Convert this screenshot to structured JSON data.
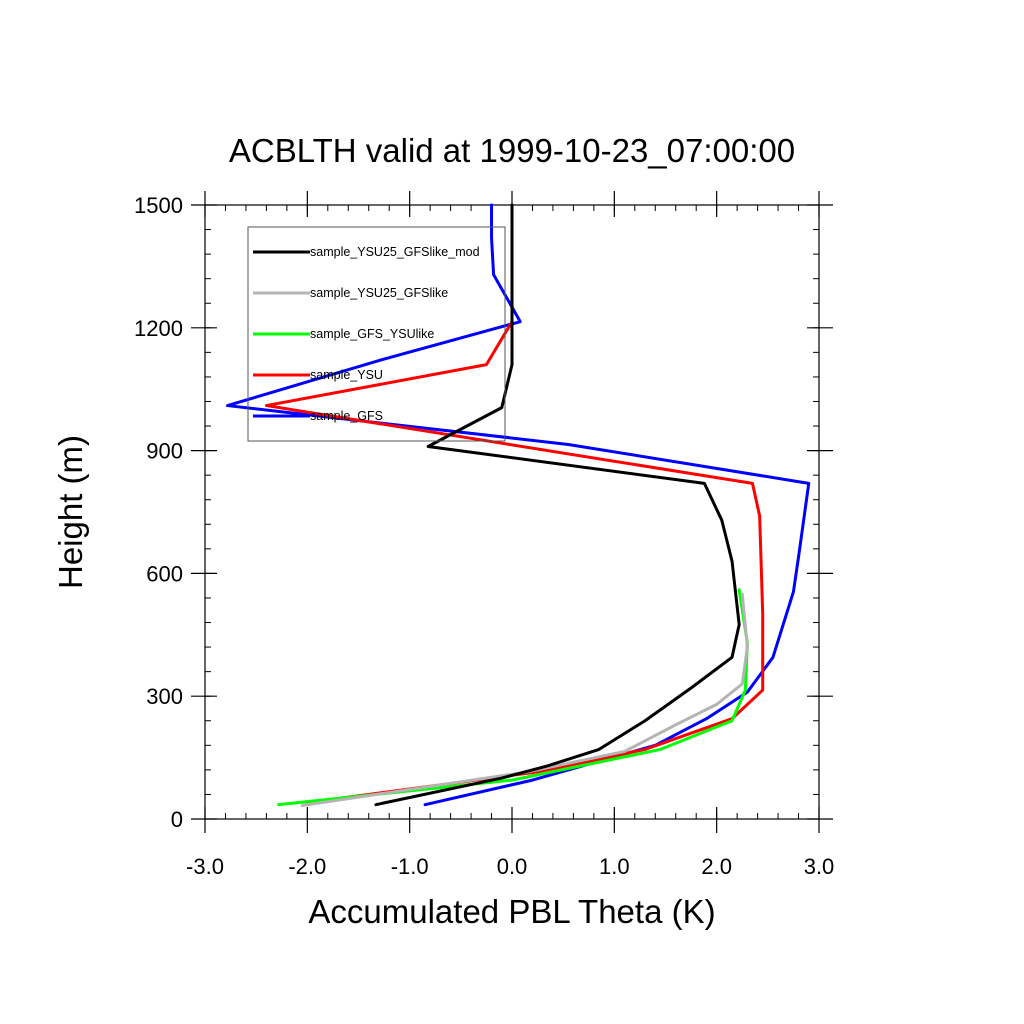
{
  "chart_data": {
    "type": "line",
    "title": "ACBLTH valid at 1999-10-23_07:00:00",
    "xlabel": "Accumulated PBL Theta (K)",
    "ylabel": "Height (m)",
    "xlim": [
      -3.0,
      3.0
    ],
    "ylim": [
      0,
      1500
    ],
    "xticks": [
      -3.0,
      -2.0,
      -1.0,
      0.0,
      1.0,
      2.0,
      3.0
    ],
    "xtick_labels": [
      "-3.0",
      "-2.0",
      "-1.0",
      "0.0",
      "1.0",
      "2.0",
      "3.0"
    ],
    "yticks": [
      0,
      300,
      600,
      900,
      1200,
      1500
    ],
    "ytick_labels": [
      "0",
      "300",
      "600",
      "900",
      "1200",
      "1500"
    ],
    "grid": false,
    "legend_position": "top-left",
    "series": [
      {
        "name": "sample_YSU25_GFSlike_mod",
        "color": "#000000",
        "points": [
          [
            -1.33,
            35
          ],
          [
            -0.1,
            100
          ],
          [
            0.35,
            130
          ],
          [
            0.85,
            170
          ],
          [
            1.3,
            240
          ],
          [
            1.75,
            320
          ],
          [
            2.15,
            395
          ],
          [
            2.22,
            475
          ],
          [
            2.15,
            630
          ],
          [
            2.05,
            730
          ],
          [
            1.88,
            820
          ],
          [
            -0.82,
            910
          ],
          [
            -0.1,
            1005
          ],
          [
            0.0,
            1110
          ],
          [
            0.0,
            1500
          ]
        ]
      },
      {
        "name": "sample_YSU25_GFSlike",
        "color": "#b4b4b4",
        "points": [
          [
            -2.05,
            33
          ],
          [
            0.15,
            115
          ],
          [
            1.1,
            165
          ],
          [
            1.6,
            230
          ],
          [
            2.0,
            280
          ],
          [
            2.25,
            330
          ],
          [
            2.3,
            420
          ],
          [
            2.25,
            550
          ]
        ]
      },
      {
        "name": "sample_GFS_YSUlike",
        "color": "#00ff00",
        "points": [
          [
            -2.28,
            35
          ],
          [
            0.0,
            95
          ],
          [
            1.45,
            170
          ],
          [
            2.15,
            240
          ],
          [
            2.28,
            315
          ],
          [
            2.3,
            430
          ],
          [
            2.22,
            560
          ]
        ]
      },
      {
        "name": "sample_YSU",
        "color": "#ff0000",
        "points": [
          [
            -2.0,
            40
          ],
          [
            0.25,
            115
          ],
          [
            1.3,
            170
          ],
          [
            2.15,
            245
          ],
          [
            2.45,
            315
          ],
          [
            2.45,
            500
          ],
          [
            2.42,
            740
          ],
          [
            2.35,
            820
          ],
          [
            -2.4,
            1010
          ],
          [
            -0.25,
            1110
          ],
          [
            0.0,
            1215
          ]
        ]
      },
      {
        "name": "sample_GFS",
        "color": "#0000ff",
        "points": [
          [
            -0.85,
            35
          ],
          [
            0.2,
            95
          ],
          [
            1.4,
            180
          ],
          [
            1.9,
            245
          ],
          [
            2.3,
            310
          ],
          [
            2.55,
            395
          ],
          [
            2.65,
            475
          ],
          [
            2.75,
            555
          ],
          [
            2.8,
            640
          ],
          [
            2.85,
            730
          ],
          [
            2.9,
            820
          ],
          [
            0.55,
            915
          ],
          [
            -2.78,
            1010
          ],
          [
            -1.3,
            1120
          ],
          [
            0.08,
            1215
          ],
          [
            -0.18,
            1330
          ],
          [
            -0.2,
            1420
          ],
          [
            -0.2,
            1500
          ]
        ]
      }
    ]
  }
}
